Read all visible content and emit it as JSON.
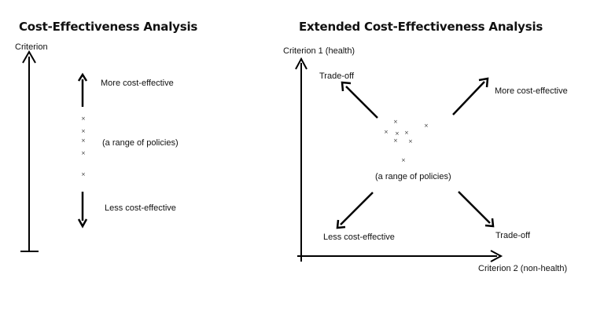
{
  "left": {
    "title": "Cost-Effectiveness Analysis",
    "axis_label": "Criterion",
    "up_label": "More cost-effective",
    "middle_label": "(a range of policies)",
    "down_label": "Less cost-effective",
    "policy_marker": "×"
  },
  "right": {
    "title": "Extended Cost-Effectiveness Analysis",
    "y_axis_label": "Criterion 1 (health)",
    "x_axis_label": "Criterion 2 (non-health)",
    "top_left_label": "Trade-off",
    "top_right_label": "More cost-effective",
    "center_label": "(a range of policies)",
    "bottom_left_label": "Less cost-effective",
    "bottom_right_label": "Trade-off",
    "policy_marker": "×"
  }
}
